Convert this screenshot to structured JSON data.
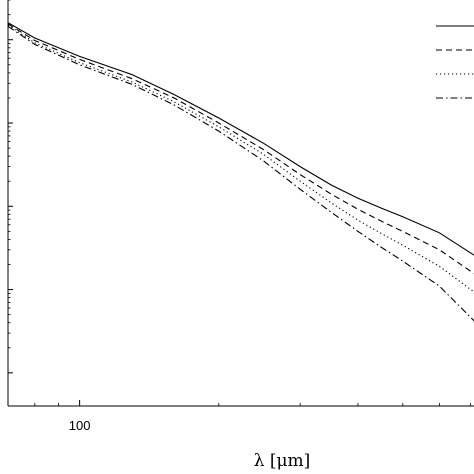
{
  "chart_data": {
    "type": "line",
    "title": "",
    "xlabel": "λ  [μm]",
    "ylabel": "",
    "x_scale": "log",
    "y_scale": "log",
    "xlim": [
      70,
      720
    ],
    "ylim": [
      4e-05,
      3
    ],
    "x_tick_labels": [
      {
        "value": 100,
        "label": "100"
      }
    ],
    "x_minor_ticks": [
      70,
      80,
      90,
      200,
      300,
      400,
      500,
      600,
      700
    ],
    "y_major_ticks": [
      0.0001,
      0.001,
      0.01,
      0.1,
      1
    ],
    "grid": false,
    "legend": {
      "position": "top-right",
      "entries": 4
    },
    "series": [
      {
        "style": "solid",
        "x": [
          70,
          80,
          100,
          130,
          160,
          200,
          250,
          300,
          350,
          400,
          450,
          500,
          600,
          720
        ],
        "y": [
          1.6,
          1.05,
          0.63,
          0.38,
          0.22,
          0.115,
          0.057,
          0.03,
          0.018,
          0.0125,
          0.0095,
          0.0075,
          0.0048,
          0.0025
        ]
      },
      {
        "style": "dashed",
        "x": [
          70,
          80,
          100,
          130,
          160,
          200,
          250,
          300,
          350,
          400,
          450,
          500,
          600,
          720
        ],
        "y": [
          1.55,
          0.98,
          0.58,
          0.34,
          0.2,
          0.1,
          0.048,
          0.024,
          0.014,
          0.0092,
          0.0066,
          0.005,
          0.003,
          0.0015
        ]
      },
      {
        "style": "dotted",
        "x": [
          70,
          80,
          100,
          130,
          160,
          200,
          250,
          300,
          350,
          400,
          450,
          500,
          600,
          720
        ],
        "y": [
          1.5,
          0.92,
          0.53,
          0.31,
          0.18,
          0.09,
          0.042,
          0.02,
          0.011,
          0.0068,
          0.0047,
          0.0034,
          0.0019,
          0.0009
        ]
      },
      {
        "style": "dashdot",
        "x": [
          70,
          80,
          100,
          130,
          160,
          200,
          250,
          300,
          350,
          400,
          450,
          500,
          600,
          720
        ],
        "y": [
          1.45,
          0.88,
          0.5,
          0.29,
          0.165,
          0.08,
          0.035,
          0.016,
          0.0085,
          0.005,
          0.0032,
          0.0022,
          0.0011,
          0.0004
        ]
      }
    ]
  }
}
